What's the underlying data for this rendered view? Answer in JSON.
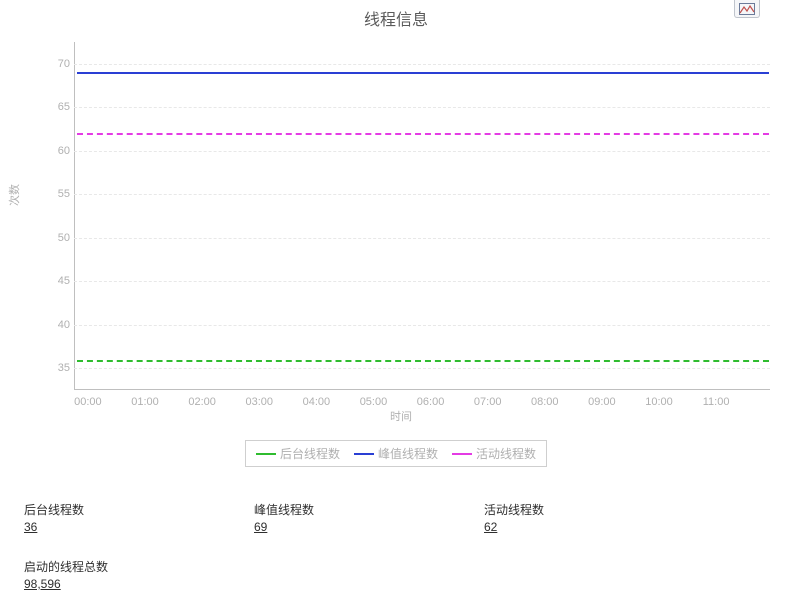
{
  "chart": {
    "type": "line",
    "title": "线程信息",
    "ylabel": "次数",
    "xlabel": "时间",
    "background_color": "#ffffff",
    "grid_color": "#e8e8e8",
    "axis_color": "#bfbfbf",
    "tick_font_color": "#b0b0b0",
    "tick_fontsize": 11,
    "title_fontsize": 16,
    "line_width": 2,
    "ylim": [
      32.5,
      72.5
    ],
    "yticks": [
      35,
      40,
      45,
      50,
      55,
      60,
      65,
      70
    ],
    "xticks": [
      "00:00",
      "01:00",
      "02:00",
      "03:00",
      "04:00",
      "05:00",
      "06:00",
      "07:00",
      "08:00",
      "09:00",
      "10:00",
      "11:00"
    ],
    "x_count": 12,
    "series": [
      {
        "name": "后台线程数",
        "value": 36,
        "color": "#2fbc2f",
        "dash": "dashed"
      },
      {
        "name": "峰值线程数",
        "value": 69,
        "color": "#2a3fd4",
        "dash": "solid"
      },
      {
        "name": "活动线程数",
        "value": 62,
        "color": "#e43be4",
        "dash": "dashed"
      }
    ]
  },
  "legend": {
    "items": [
      {
        "label": "后台线程数",
        "color": "#2fbc2f"
      },
      {
        "label": "峰值线程数",
        "color": "#2a3fd4"
      },
      {
        "label": "活动线程数",
        "color": "#e43be4"
      }
    ]
  },
  "stats": [
    {
      "label": "后台线程数",
      "value": "36"
    },
    {
      "label": "峰值线程数",
      "value": "69"
    },
    {
      "label": "活动线程数",
      "value": "62"
    },
    {
      "label": "启动的线程总数",
      "value": "98,596"
    }
  ],
  "icon": {
    "name": "chart-icon"
  }
}
